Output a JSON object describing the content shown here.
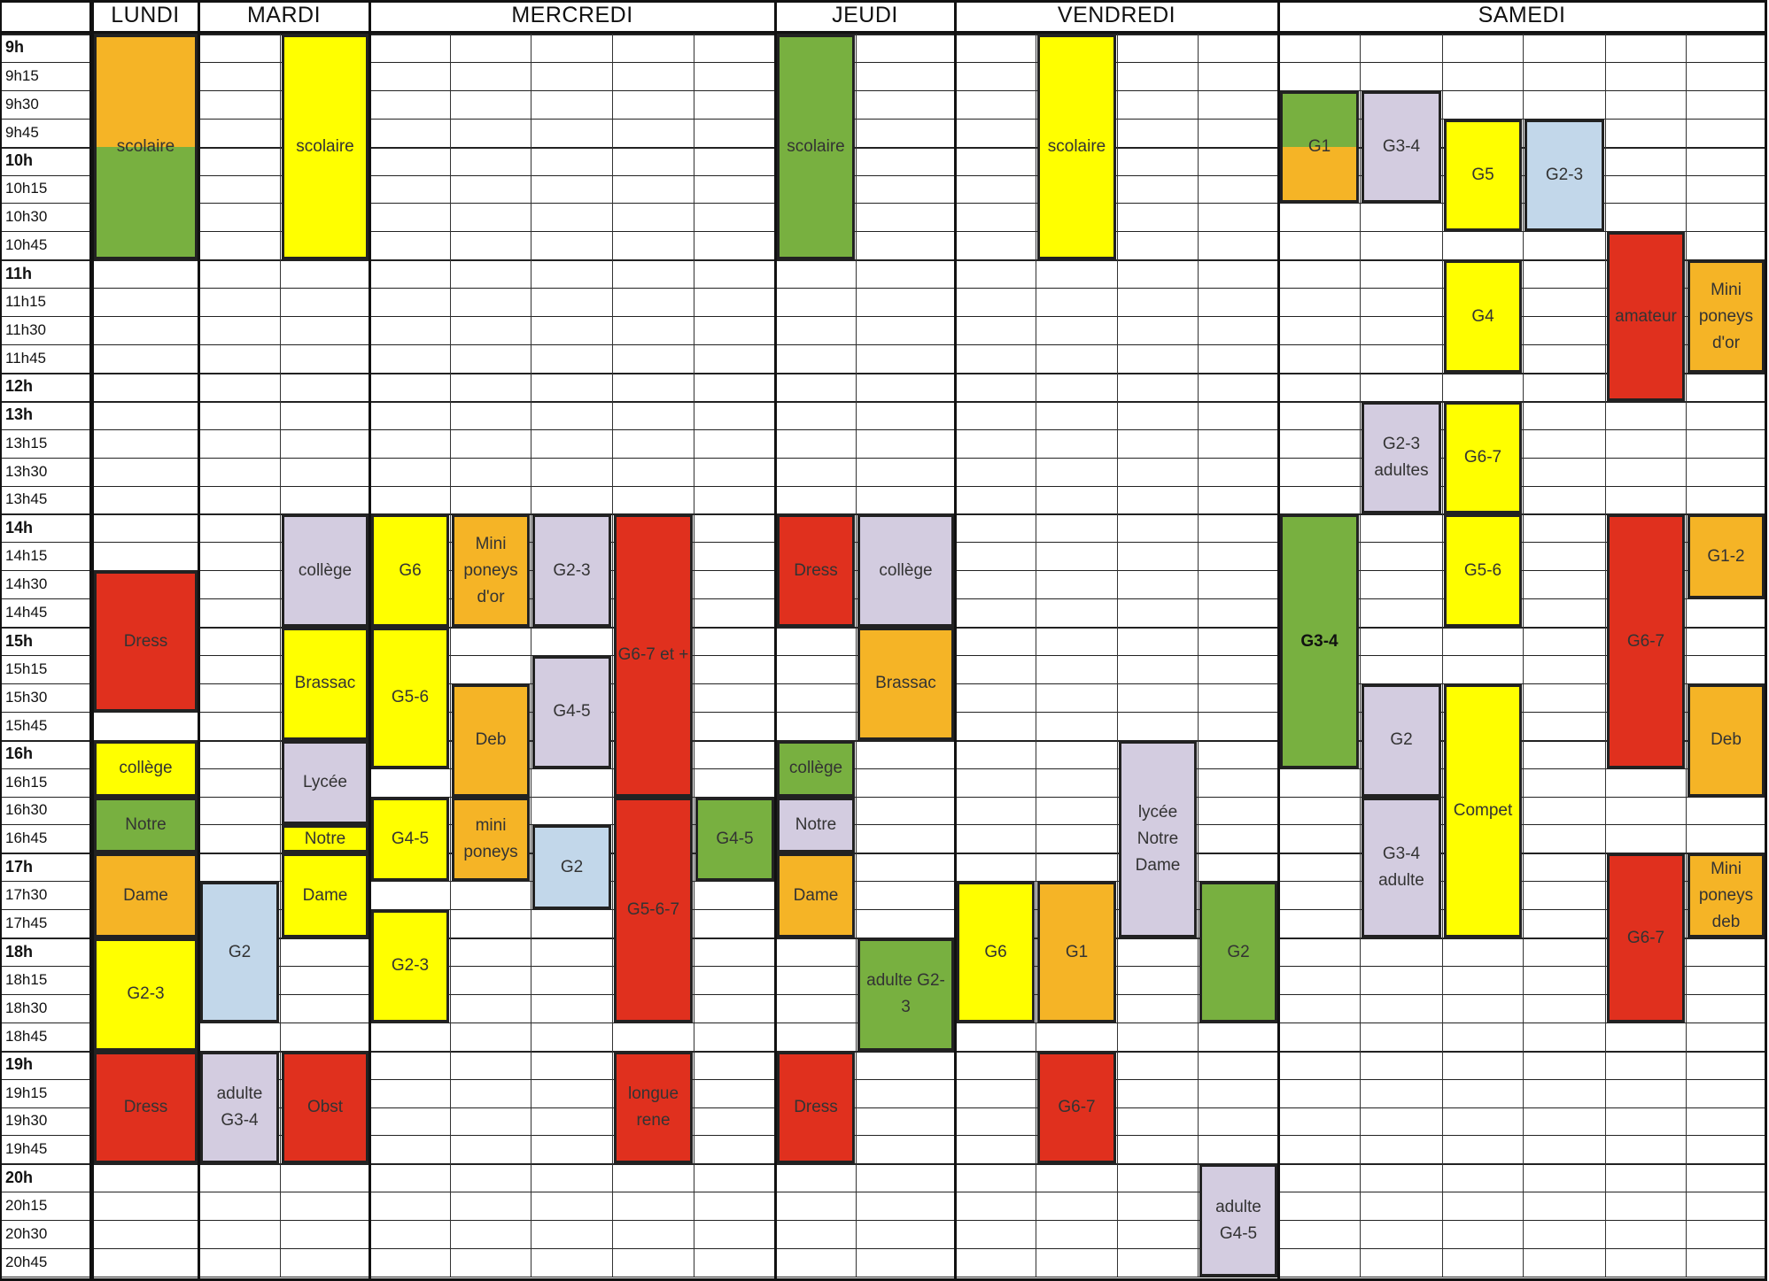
{
  "schedule": {
    "days": [
      "LUNDI",
      "MARDI",
      "MERCREDI",
      "JEUDI",
      "VENDREDI",
      "SAMEDI"
    ],
    "times": [
      "9h",
      "9h15",
      "9h30",
      "9h45",
      "10h",
      "10h15",
      "10h30",
      "10h45",
      "11h",
      "11h15",
      "11h30",
      "11h45",
      "12h",
      "13h",
      "13h15",
      "13h30",
      "13h45",
      "14h",
      "14h15",
      "14h30",
      "14h45",
      "15h",
      "15h15",
      "15h30",
      "15h45",
      "16h",
      "16h15",
      "16h30",
      "16h45",
      "17h",
      "17h30",
      "17h45",
      "18h",
      "18h15",
      "18h30",
      "18h45",
      "19h",
      "19h15",
      "19h30",
      "19h45",
      "20h",
      "20h15",
      "20h30",
      "20h45"
    ],
    "colors": {
      "red": "#e0301e",
      "yellow": "#ffff00",
      "orange": "#f5b426",
      "green": "#78b040",
      "lilac": "#d3cce0",
      "blue": "#c2d7ea",
      "lines": "#222222"
    },
    "blocks": [
      {
        "day": "LUNDI",
        "col": 0,
        "text": "scolaire",
        "start": "9h",
        "end": "11h",
        "color": "orange",
        "split": [
          {
            "color": "orange",
            "f": 0.5
          },
          {
            "color": "green",
            "f": 0.5
          }
        ]
      },
      {
        "day": "LUNDI",
        "col": 0,
        "text": "Dress",
        "start": "14h30",
        "end": "15h45",
        "color": "red"
      },
      {
        "day": "LUNDI",
        "col": 0,
        "text": "collège",
        "start": "16h",
        "end": "16h30",
        "color": "yellow"
      },
      {
        "day": "LUNDI",
        "col": 0,
        "text": "Notre",
        "start": "16h30",
        "end": "17h",
        "color": "green"
      },
      {
        "day": "LUNDI",
        "col": 0,
        "text": "Dame",
        "start": "17h",
        "end": "17h45+",
        "color": "orange"
      },
      {
        "day": "LUNDI",
        "col": 0,
        "text": "G2-3",
        "start": "18h",
        "end": "19h",
        "color": "yellow"
      },
      {
        "day": "LUNDI",
        "col": 0,
        "text": "Dress",
        "start": "19h",
        "end": "20h",
        "color": "red"
      },
      {
        "day": "MARDI",
        "col": 1,
        "text": "scolaire",
        "start": "9h",
        "end": "11h",
        "color": "yellow"
      },
      {
        "day": "MARDI",
        "col": 1,
        "text": "collège",
        "start": "14h",
        "end": "15h",
        "color": "lilac"
      },
      {
        "day": "MARDI",
        "col": 1,
        "text": "Brassac",
        "start": "15h",
        "end": "16h",
        "color": "yellow"
      },
      {
        "day": "MARDI",
        "col": 1,
        "text": "Lycée",
        "start": "16h",
        "end": "16h45",
        "color": "lilac"
      },
      {
        "day": "MARDI",
        "col": 1,
        "text": "Notre",
        "start": "16h45",
        "end": "17h",
        "color": "yellow"
      },
      {
        "day": "MARDI",
        "col": 1,
        "text": "Dame",
        "start": "17h",
        "end": "17h45+",
        "color": "yellow"
      },
      {
        "day": "MARDI",
        "col": 0,
        "text": "G2",
        "start": "17h30",
        "end": "18h30+",
        "color": "blue"
      },
      {
        "day": "MARDI",
        "col": 0,
        "text": "adulte\nG3-4",
        "start": "19h",
        "end": "20h",
        "color": "lilac"
      },
      {
        "day": "MARDI",
        "col": 1,
        "text": "Obst",
        "start": "19h",
        "end": "20h",
        "color": "red"
      },
      {
        "day": "MERCREDI",
        "col": 0,
        "text": "G6",
        "start": "14h",
        "end": "15h",
        "color": "yellow"
      },
      {
        "day": "MERCREDI",
        "col": 0,
        "text": "G5-6",
        "start": "15h",
        "end": "16h15",
        "color": "yellow"
      },
      {
        "day": "MERCREDI",
        "col": 0,
        "text": "G4-5",
        "start": "16h30",
        "end": "17h30",
        "color": "yellow"
      },
      {
        "day": "MERCREDI",
        "col": 0,
        "text": "G2-3",
        "start": "17h45",
        "end": "18h45",
        "color": "yellow"
      },
      {
        "day": "MERCREDI",
        "col": 1,
        "text": "Mini\nponeys\nd'or",
        "start": "14h",
        "end": "15h",
        "color": "orange"
      },
      {
        "day": "MERCREDI",
        "col": 1,
        "text": "Deb",
        "start": "15h30",
        "end": "16h30",
        "color": "orange"
      },
      {
        "day": "MERCREDI",
        "col": 1,
        "text": "mini\nponeys",
        "start": "16h30",
        "end": "17h30",
        "color": "orange"
      },
      {
        "day": "MERCREDI",
        "col": 2,
        "text": "G2-3",
        "start": "14h",
        "end": "15h",
        "color": "lilac"
      },
      {
        "day": "MERCREDI",
        "col": 2,
        "text": "G4-5",
        "start": "15h15",
        "end": "16h15",
        "color": "lilac"
      },
      {
        "day": "MERCREDI",
        "col": 2,
        "text": "G2",
        "start": "16h45",
        "end": "17h45",
        "color": "blue"
      },
      {
        "day": "MERCREDI",
        "col": 3,
        "text": "G6-7 et +",
        "start": "14h",
        "end": "16h30",
        "color": "red"
      },
      {
        "day": "MERCREDI",
        "col": 3,
        "text": "G5-6-7",
        "start": "16h30",
        "end": "18h45",
        "color": "red"
      },
      {
        "day": "MERCREDI",
        "col": 3,
        "text": "longue\nrene",
        "start": "19h",
        "end": "20h",
        "color": "red"
      },
      {
        "day": "MERCREDI",
        "col": 4,
        "text": "G4-5",
        "start": "16h30",
        "end": "17h30",
        "color": "green"
      },
      {
        "day": "JEUDI",
        "col": 0,
        "text": "scolaire",
        "start": "9h",
        "end": "11h",
        "color": "green"
      },
      {
        "day": "JEUDI",
        "col": 0,
        "text": "Dress",
        "start": "14h",
        "end": "15h",
        "color": "red"
      },
      {
        "day": "JEUDI",
        "col": 1,
        "text": "collège",
        "start": "14h",
        "end": "15h",
        "color": "lilac"
      },
      {
        "day": "JEUDI",
        "col": 1,
        "text": "Brassac",
        "start": "15h",
        "end": "16h",
        "color": "orange"
      },
      {
        "day": "JEUDI",
        "col": 0,
        "text": "collège",
        "start": "16h",
        "end": "16h30",
        "color": "green"
      },
      {
        "day": "JEUDI",
        "col": 0,
        "text": "Notre",
        "start": "16h30",
        "end": "17h",
        "color": "lilac"
      },
      {
        "day": "JEUDI",
        "col": 0,
        "text": "Dame",
        "start": "17h",
        "end": "17h45+",
        "color": "orange"
      },
      {
        "day": "JEUDI",
        "col": 1,
        "text": "adulte G2-\n3",
        "start": "18h",
        "end": "19h",
        "color": "green"
      },
      {
        "day": "JEUDI",
        "col": 0,
        "text": "Dress",
        "start": "19h",
        "end": "20h",
        "color": "red"
      },
      {
        "day": "VENDREDI",
        "col": 1,
        "text": "scolaire",
        "start": "9h",
        "end": "11h",
        "color": "yellow"
      },
      {
        "day": "VENDREDI",
        "col": 2,
        "text": "lycée\nNotre\nDame",
        "start": "16h",
        "end": "17h45+",
        "color": "lilac"
      },
      {
        "day": "VENDREDI",
        "col": 0,
        "text": "G6",
        "start": "17h30",
        "end": "18h30+",
        "color": "yellow"
      },
      {
        "day": "VENDREDI",
        "col": 1,
        "text": "G1",
        "start": "17h30",
        "end": "18h30+",
        "color": "orange"
      },
      {
        "day": "VENDREDI",
        "col": 3,
        "text": "G2",
        "start": "17h30",
        "end": "18h30+",
        "color": "green"
      },
      {
        "day": "VENDREDI",
        "col": 1,
        "text": "G6-7",
        "start": "19h",
        "end": "20h",
        "color": "red"
      },
      {
        "day": "VENDREDI",
        "col": 3,
        "text": "adulte\nG4-5",
        "start": "20h",
        "end": "20h45+",
        "color": "lilac"
      },
      {
        "day": "SAMEDI",
        "col": 0,
        "text": "G1",
        "start": "9h30",
        "end": "10h30",
        "color": "orange",
        "split": [
          {
            "color": "green",
            "f": 0.5
          },
          {
            "color": "orange",
            "f": 0.5
          }
        ]
      },
      {
        "day": "SAMEDI",
        "col": 1,
        "text": "G3-4",
        "start": "9h30",
        "end": "10h30",
        "color": "lilac"
      },
      {
        "day": "SAMEDI",
        "col": 2,
        "text": "G5",
        "start": "9h45",
        "end": "10h45",
        "color": "yellow"
      },
      {
        "day": "SAMEDI",
        "col": 3,
        "text": "G2-3",
        "start": "9h45",
        "end": "10h45",
        "color": "blue"
      },
      {
        "day": "SAMEDI",
        "col": 4,
        "text": "amateur",
        "start": "10h45",
        "end": "13h",
        "color": "red"
      },
      {
        "day": "SAMEDI",
        "col": 5,
        "text": "Mini\nponeys\nd'or",
        "start": "11h",
        "end": "12h",
        "color": "orange"
      },
      {
        "day": "SAMEDI",
        "col": 2,
        "text": "G4",
        "start": "11h",
        "end": "12h",
        "color": "yellow"
      },
      {
        "day": "SAMEDI",
        "col": 1,
        "text": "G2-3\nadultes",
        "start": "13h",
        "end": "14h",
        "color": "lilac"
      },
      {
        "day": "SAMEDI",
        "col": 2,
        "text": "G6-7",
        "start": "13h",
        "end": "14h",
        "color": "yellow"
      },
      {
        "day": "SAMEDI",
        "col": 0,
        "text": "G3-4",
        "start": "14h",
        "end": "16h15",
        "color": "green",
        "bold": true
      },
      {
        "day": "SAMEDI",
        "col": 2,
        "text": "G5-6",
        "start": "14h",
        "end": "15h",
        "color": "yellow"
      },
      {
        "day": "SAMEDI",
        "col": 4,
        "text": "G6-7",
        "start": "14h",
        "end": "16h15",
        "color": "red"
      },
      {
        "day": "SAMEDI",
        "col": 5,
        "text": "G1-2",
        "start": "14h",
        "end": "14h45",
        "color": "orange"
      },
      {
        "day": "SAMEDI",
        "col": 5,
        "text": "Deb",
        "start": "15h30",
        "end": "16h30",
        "color": "orange"
      },
      {
        "day": "SAMEDI",
        "col": 1,
        "text": "G2",
        "start": "15h30",
        "end": "16h30",
        "color": "lilac"
      },
      {
        "day": "SAMEDI",
        "col": 2,
        "text": "Compet",
        "start": "15h30",
        "end": "17h45+",
        "color": "yellow"
      },
      {
        "day": "SAMEDI",
        "col": 1,
        "text": "G3-4\nadulte",
        "start": "16h30",
        "end": "17h45+",
        "color": "lilac"
      },
      {
        "day": "SAMEDI",
        "col": 4,
        "text": "G6-7",
        "start": "17h",
        "end": "18h45",
        "color": "red"
      },
      {
        "day": "SAMEDI",
        "col": 5,
        "text": "Mini\nponeys\ndeb",
        "start": "17h",
        "end": "17h45+",
        "color": "orange"
      }
    ]
  }
}
